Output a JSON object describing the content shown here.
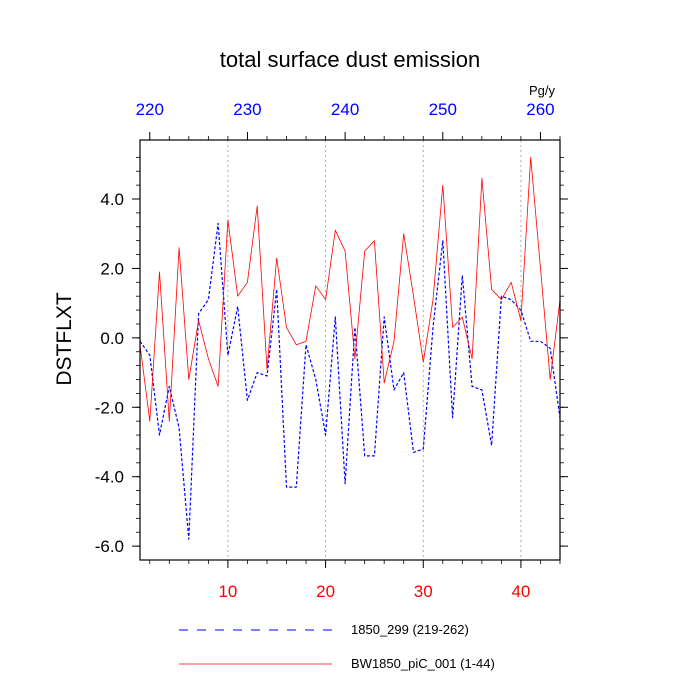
{
  "chart_data": {
    "type": "line",
    "title": "total surface dust emission",
    "ylabel": "DSTFLXT",
    "units": "Pg/y",
    "xlim": [
      1,
      44
    ],
    "ylim": [
      -6.4,
      5.7
    ],
    "x_bottom": {
      "ticks": [
        10,
        20,
        30,
        40
      ],
      "labels": [
        "10",
        "20",
        "30",
        "40"
      ],
      "color": "#ff0000"
    },
    "x_top": {
      "ticks": [
        220,
        230,
        240,
        250,
        260
      ],
      "labels": [
        "220",
        "230",
        "240",
        "250",
        "260"
      ],
      "color": "#0000ff",
      "offset": 218
    },
    "y_ticks": [
      4.0,
      2.0,
      0.0,
      -2.0,
      -4.0,
      -6.0
    ],
    "y_tick_labels": [
      "4.0",
      "2.0",
      "0.0",
      "-2.0",
      "-4.0",
      "-6.0"
    ],
    "gridlines_x": [
      10,
      20,
      30,
      40
    ],
    "series": [
      {
        "name": "1850_299 (219-262)",
        "color": "#0000ff",
        "style": "dashed",
        "x": [
          1,
          2,
          3,
          4,
          5,
          6,
          7,
          8,
          9,
          10,
          11,
          12,
          13,
          14,
          15,
          16,
          17,
          18,
          19,
          20,
          21,
          22,
          23,
          24,
          25,
          26,
          27,
          28,
          29,
          30,
          31,
          32,
          33,
          34,
          35,
          36,
          37,
          38,
          39,
          40,
          41,
          42,
          43,
          44
        ],
        "values": [
          -0.1,
          -0.5,
          -2.8,
          -1.4,
          -2.6,
          -5.8,
          0.7,
          1.1,
          3.3,
          -0.5,
          0.9,
          -1.8,
          -1.0,
          -1.1,
          1.4,
          -4.3,
          -4.3,
          -0.2,
          -1.2,
          -2.8,
          0.6,
          -4.2,
          0.3,
          -3.4,
          -3.4,
          0.6,
          -1.5,
          -1.0,
          -3.3,
          -3.2,
          0.3,
          2.8,
          -2.3,
          1.8,
          -1.4,
          -1.5,
          -3.1,
          1.2,
          1.1,
          0.8,
          -0.1,
          -0.1,
          -0.3,
          -2.3
        ]
      },
      {
        "name": "BW1850_piC_001 (1-44)",
        "color": "#ff0000",
        "style": "solid",
        "x": [
          1,
          2,
          3,
          4,
          5,
          6,
          7,
          8,
          9,
          10,
          11,
          12,
          13,
          14,
          15,
          16,
          17,
          18,
          19,
          20,
          21,
          22,
          23,
          24,
          25,
          26,
          27,
          28,
          29,
          30,
          31,
          32,
          33,
          34,
          35,
          36,
          37,
          38,
          39,
          40,
          41,
          42,
          43,
          44
        ],
        "values": [
          -0.2,
          -2.4,
          1.9,
          -2.4,
          2.6,
          -1.2,
          0.5,
          -0.6,
          -1.4,
          3.4,
          1.2,
          1.6,
          3.8,
          -0.9,
          2.3,
          0.3,
          -0.2,
          -0.1,
          1.5,
          1.1,
          3.1,
          2.5,
          -0.6,
          2.5,
          2.8,
          -1.3,
          -0.1,
          3.0,
          1.2,
          -0.7,
          1.1,
          4.4,
          0.3,
          0.6,
          -0.6,
          4.6,
          1.4,
          1.1,
          1.6,
          0.5,
          5.2,
          2.0,
          -1.2,
          1.1
        ]
      }
    ],
    "legend": [
      "1850_299 (219-262)",
      "BW1850_piC_001 (1-44)"
    ]
  }
}
